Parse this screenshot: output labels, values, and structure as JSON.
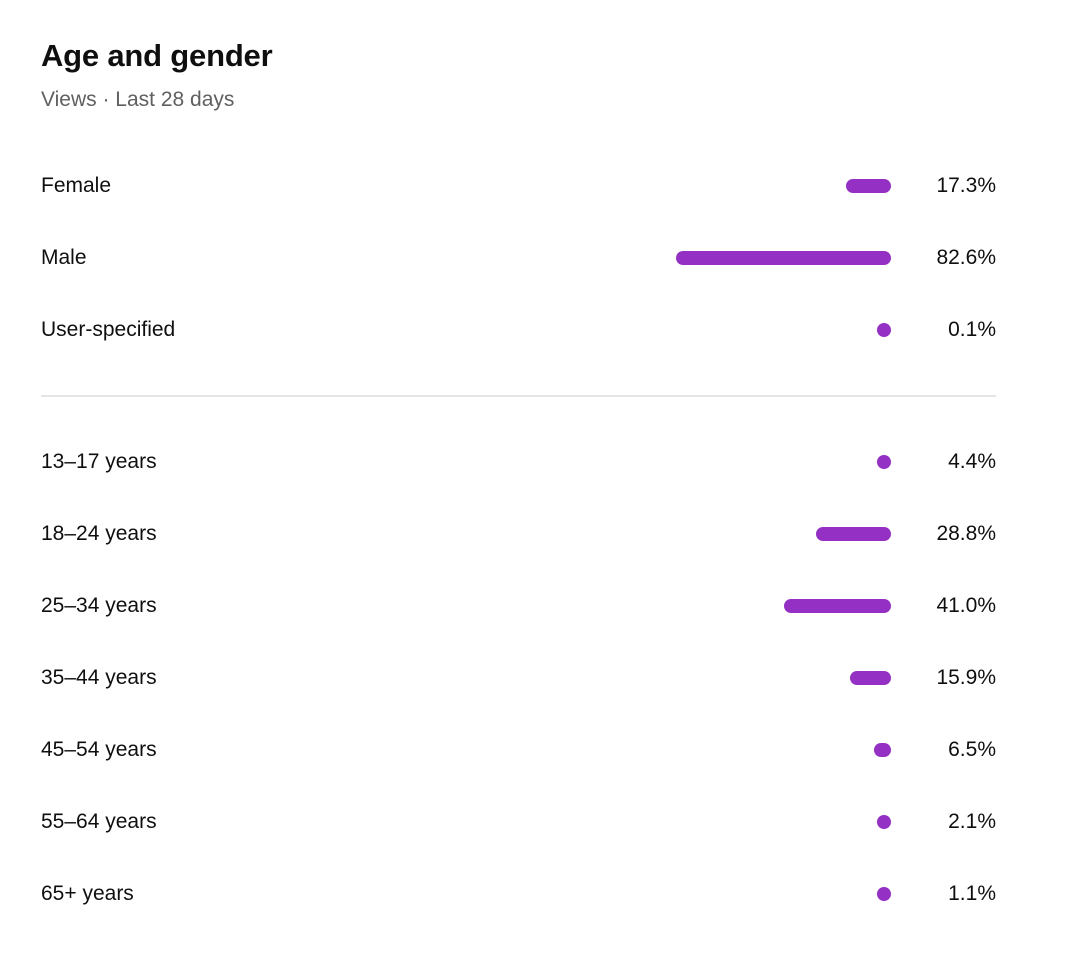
{
  "card": {
    "title": "Age and gender",
    "subtitle": "Views · Last 28 days"
  },
  "colors": {
    "bar": "#9431c4",
    "divider": "#e5e5e5",
    "subtitle": "#606060"
  },
  "gender": [
    {
      "label": "Female",
      "value_label": "17.3%",
      "value": 17.3
    },
    {
      "label": "Male",
      "value_label": "82.6%",
      "value": 82.6
    },
    {
      "label": "User-specified",
      "value_label": "0.1%",
      "value": 0.1
    }
  ],
  "age": [
    {
      "label": "13–17 years",
      "value_label": "4.4%",
      "value": 4.4
    },
    {
      "label": "18–24 years",
      "value_label": "28.8%",
      "value": 28.8
    },
    {
      "label": "25–34 years",
      "value_label": "41.0%",
      "value": 41.0
    },
    {
      "label": "35–44 years",
      "value_label": "15.9%",
      "value": 15.9
    },
    {
      "label": "45–54 years",
      "value_label": "6.5%",
      "value": 6.5
    },
    {
      "label": "55–64 years",
      "value_label": "2.1%",
      "value": 2.1
    },
    {
      "label": "65+ years",
      "value_label": "1.1%",
      "value": 1.1
    }
  ]
}
